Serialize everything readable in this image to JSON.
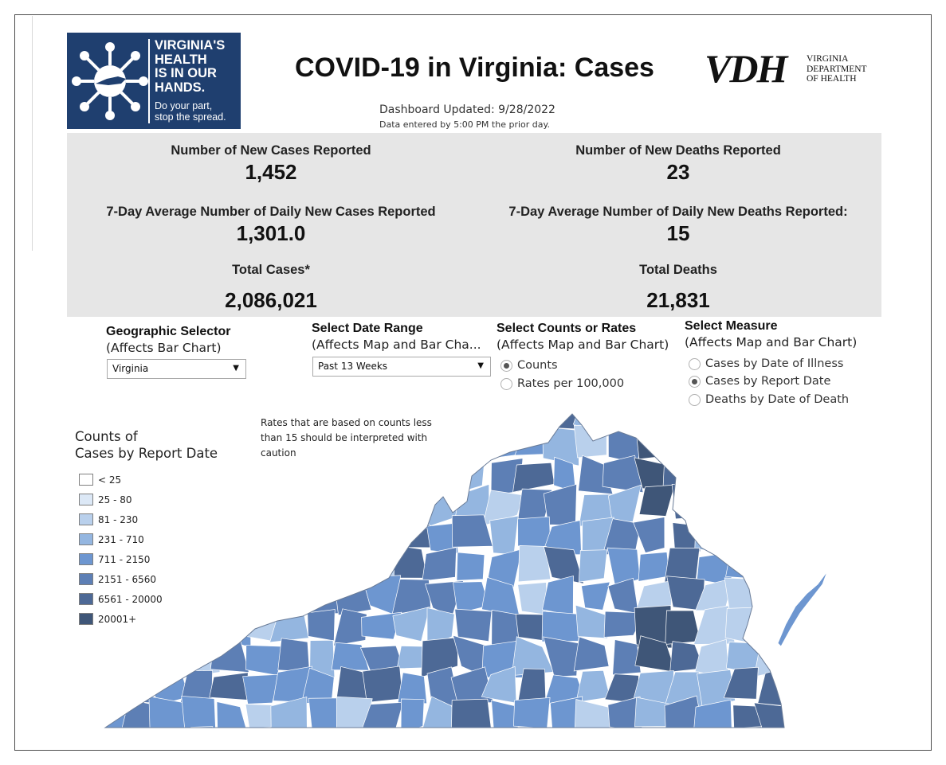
{
  "logo": {
    "line1": "VIRGINIA'S",
    "line2": "HEALTH",
    "line3": "IS IN OUR",
    "line4": "HANDS.",
    "tag1": "Do your part,",
    "tag2": "stop the spread."
  },
  "header": {
    "title": "COVID-19 in Virginia: Cases",
    "updated": "Dashboard Updated: 9/28/2022",
    "entered": "Data entered by 5:00 PM the prior day."
  },
  "vdh": {
    "letters": "VDH",
    "dept1": "VIRGINIA",
    "dept2": "DEPARTMENT",
    "dept3": "OF HEALTH"
  },
  "stats": {
    "new_cases_label": "Number of New Cases Reported",
    "new_cases_value": "1,452",
    "new_deaths_label": "Number of New Deaths Reported",
    "new_deaths_value": "23",
    "avg_cases_label": "7-Day Average Number of Daily New Cases Reported",
    "avg_cases_value": "1,301.0",
    "avg_deaths_label": "7-Day Average Number of Daily New Deaths Reported:",
    "avg_deaths_value": "15",
    "total_cases_label": "Total Cases*",
    "total_cases_value": "2,086,021",
    "total_deaths_label": "Total Deaths",
    "total_deaths_value": "21,831"
  },
  "filters": {
    "geo_title": "Geographic Selector",
    "geo_sub": "(Affects Bar Chart)",
    "geo_value": "Virginia",
    "date_title": "Select Date Range",
    "date_sub": "(Affects Map and Bar Cha...",
    "date_value": "Past 13 Weeks",
    "counts_title": "Select Counts or Rates",
    "counts_sub": "(Affects Map and Bar Chart)",
    "counts_options": [
      "Counts",
      "Rates per 100,000"
    ],
    "counts_selected": "Counts",
    "measure_title": "Select Measure",
    "measure_sub": "(Affects Map and Bar Chart)",
    "measure_options": [
      "Cases by Date of Illness",
      "Cases by Report Date",
      "Deaths by Date of Death"
    ],
    "measure_selected": "Cases by Report Date"
  },
  "note": "Rates that are based on counts less than 15 should be interpreted with caution",
  "legend": {
    "title_line1": "Counts of",
    "title_line2": "Cases by Report Date",
    "items": [
      {
        "label": "< 25",
        "color": "#ffffff"
      },
      {
        "label": "25 - 80",
        "color": "#dce8f6"
      },
      {
        "label": "81 - 230",
        "color": "#b9d0ec"
      },
      {
        "label": "231 - 710",
        "color": "#94b6e0"
      },
      {
        "label": "711 - 2150",
        "color": "#6d96d0"
      },
      {
        "label": "2151 - 6560",
        "color": "#5d7fb5"
      },
      {
        "label": "6561 - 20000",
        "color": "#4d6996"
      },
      {
        "label": "20001+",
        "color": "#3f5678"
      }
    ]
  }
}
